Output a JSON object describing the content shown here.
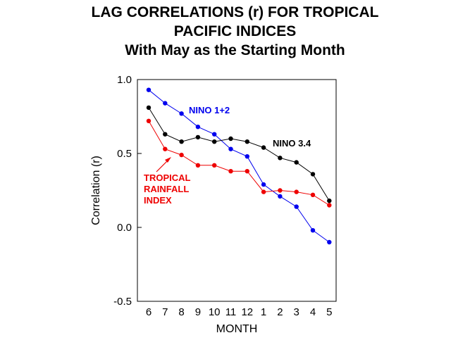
{
  "chart_data": {
    "type": "line",
    "title_lines": [
      "LAG CORRELATIONS (r) FOR TROPICAL",
      "PACIFIC INDICES",
      "With May as the Starting Month"
    ],
    "xlabel": "MONTH",
    "ylabel": "Correlation (r)",
    "ylim": [
      -0.5,
      1.0
    ],
    "yticks": [
      "1.0",
      "0.5",
      "0.0",
      "-0.5"
    ],
    "ytick_values": [
      1.0,
      0.5,
      0.0,
      -0.5
    ],
    "categories": [
      "6",
      "7",
      "8",
      "9",
      "10",
      "11",
      "12",
      "1",
      "2",
      "3",
      "4",
      "5"
    ],
    "series": [
      {
        "name": "NINO 1+2",
        "label_lines": [
          "NINO 1+2"
        ],
        "color": "#0000ee",
        "values": [
          0.93,
          0.84,
          0.77,
          0.68,
          0.63,
          0.53,
          0.48,
          0.29,
          0.21,
          0.14,
          -0.02,
          -0.1
        ]
      },
      {
        "name": "NINO 3.4",
        "label_lines": [
          "NINO 3.4"
        ],
        "color": "#000000",
        "values": [
          0.81,
          0.63,
          0.58,
          0.61,
          0.58,
          0.6,
          0.58,
          0.54,
          0.47,
          0.44,
          0.36,
          0.18
        ]
      },
      {
        "name": "TROPICAL RAINFALL INDEX",
        "label_lines": [
          "TROPICAL",
          "RAINFALL",
          "INDEX"
        ],
        "color": "#ee0000",
        "values": [
          0.72,
          0.53,
          0.49,
          0.42,
          0.42,
          0.38,
          0.38,
          0.24,
          0.25,
          0.24,
          0.22,
          0.15
        ]
      }
    ]
  }
}
